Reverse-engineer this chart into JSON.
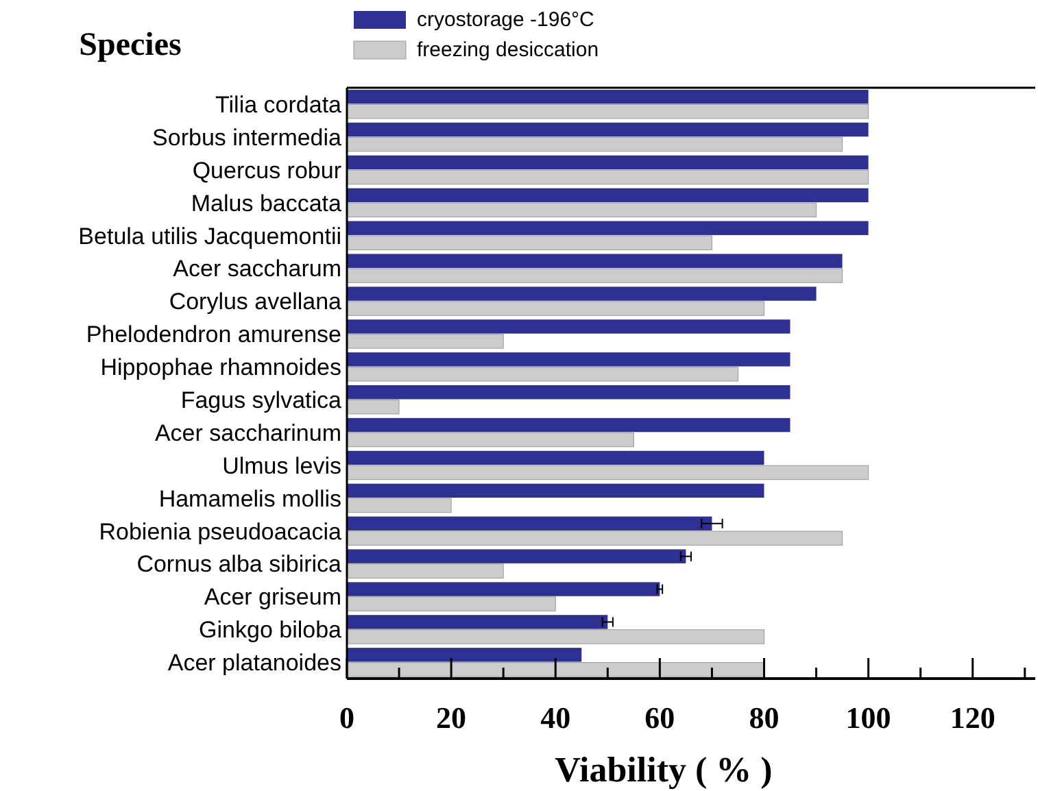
{
  "chart_data": {
    "type": "bar",
    "orientation": "horizontal",
    "ylabel": "Species",
    "xlabel": "Viability ( % )",
    "legend": "top left",
    "categories": [
      "Tilia cordata",
      "Sorbus intermedia",
      "Quercus robur",
      "Malus baccata",
      "Betula utilis Jacquemontii",
      "Acer saccharum",
      "Corylus avellana",
      "Phelodendron amurense",
      "Hippophae rhamnoides",
      "Fagus sylvatica",
      "Acer saccharinum",
      "Ulmus levis",
      "Hamamelis mollis",
      "Robienia pseudoacacia",
      "Cornus alba sibirica",
      "Acer griseum",
      "Ginkgo biloba",
      "Acer platanoides"
    ],
    "series": [
      {
        "name": "cryostorage -196°C",
        "color": "#2e3192",
        "values": [
          100,
          100,
          100,
          100,
          100,
          95,
          90,
          85,
          85,
          85,
          85,
          80,
          80,
          70,
          65,
          60,
          50,
          45
        ],
        "errors": [
          null,
          null,
          null,
          null,
          null,
          null,
          null,
          null,
          null,
          null,
          null,
          null,
          null,
          2,
          1,
          0.5,
          1,
          null
        ]
      },
      {
        "name": "freezing desiccation",
        "color": "#cccccc",
        "values": [
          100,
          95,
          100,
          90,
          70,
          95,
          80,
          30,
          75,
          10,
          55,
          100,
          20,
          95,
          30,
          40,
          80,
          80
        ]
      }
    ],
    "xlim": [
      0,
      132
    ],
    "xticks": [
      0,
      {
        "value": 10,
        "label": null
      },
      20,
      {
        "value": 30,
        "label": null
      },
      40,
      {
        "value": 50,
        "label": null
      },
      60,
      {
        "value": 70,
        "label": null
      },
      80,
      {
        "value": 90,
        "label": null
      },
      100,
      {
        "value": 110,
        "label": null
      },
      120,
      {
        "value": 130,
        "label": null
      }
    ]
  }
}
